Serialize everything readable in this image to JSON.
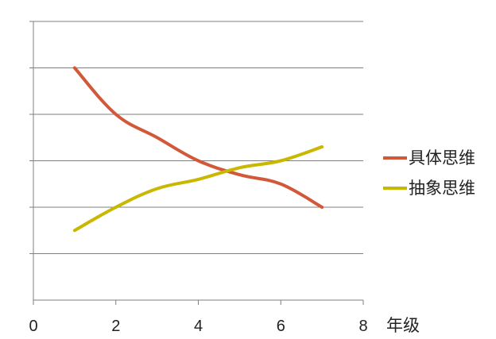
{
  "chart_data": {
    "type": "line",
    "xlabel": "年级",
    "ylabel": "",
    "xlim": [
      0,
      8
    ],
    "ylim": [
      0,
      6
    ],
    "x_ticks": [
      "0",
      "2",
      "4",
      "6",
      "8"
    ],
    "grid": "horizontal",
    "legend_position": "right",
    "series": [
      {
        "name": "具体思维",
        "color": "#D2583A",
        "x": [
          1,
          2,
          3,
          4,
          5,
          6,
          7
        ],
        "values": [
          5,
          4,
          3.5,
          3,
          2.7,
          2.5,
          2
        ]
      },
      {
        "name": "抽象思维",
        "color": "#C9B800",
        "x": [
          1,
          2,
          3,
          4,
          5,
          6,
          7
        ],
        "values": [
          1.5,
          2,
          2.4,
          2.6,
          2.85,
          3,
          3.3
        ]
      }
    ]
  }
}
